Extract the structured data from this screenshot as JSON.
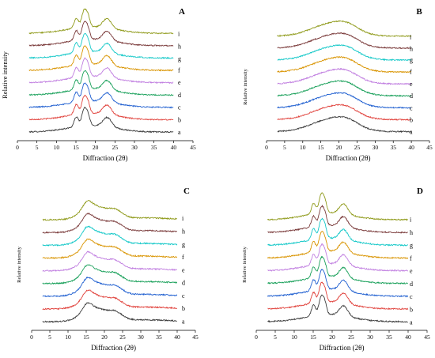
{
  "figure": {
    "background": "#ffffff",
    "panels": [
      "A",
      "B",
      "C",
      "D"
    ]
  },
  "series_colors": {
    "a": "#3c3c3c",
    "b": "#e0403a",
    "c": "#1f5fd0",
    "d": "#19a05a",
    "e": "#c07ee0",
    "f": "#d99400",
    "g": "#14c8c8",
    "h": "#7a3a3a",
    "i": "#8f9a1a"
  },
  "chart_data": [
    {
      "panel": "A",
      "type": "line",
      "title": "A",
      "xlabel": "Diffraction (2θ)",
      "ylabel": "Relative intensity",
      "xlim": [
        0,
        45
      ],
      "xticks": [
        0,
        5,
        10,
        15,
        20,
        25,
        30,
        35,
        40,
        45
      ],
      "x_range": [
        3,
        40
      ],
      "grid": false,
      "legend": "series labels at right end of each curve",
      "series": [
        {
          "name": "a",
          "color": "#3c3c3c",
          "offset": 0
        },
        {
          "name": "b",
          "color": "#e0403a",
          "offset": 1
        },
        {
          "name": "c",
          "color": "#1f5fd0",
          "offset": 2
        },
        {
          "name": "d",
          "color": "#19a05a",
          "offset": 3
        },
        {
          "name": "e",
          "color": "#c07ee0",
          "offset": 4
        },
        {
          "name": "f",
          "color": "#d99400",
          "offset": 5
        },
        {
          "name": "g",
          "color": "#14c8c8",
          "offset": 6
        },
        {
          "name": "h",
          "color": "#7a3a3a",
          "offset": 7
        },
        {
          "name": "i",
          "color": "#8f9a1a",
          "offset": 8
        }
      ],
      "peaks_2theta": [
        15.0,
        17.0,
        18.0,
        23.0
      ]
    },
    {
      "panel": "B",
      "type": "line",
      "title": "B",
      "xlabel": "Diffraction (2θ)",
      "ylabel": "Relative intensity",
      "xlim": [
        0,
        45
      ],
      "xticks": [
        0,
        5,
        10,
        15,
        20,
        25,
        30,
        35,
        40,
        45
      ],
      "x_range": [
        3,
        40
      ],
      "grid": false,
      "legend": "series labels at right end of each curve",
      "series": [
        {
          "name": "a",
          "color": "#3c3c3c",
          "offset": 0
        },
        {
          "name": "b",
          "color": "#e0403a",
          "offset": 1
        },
        {
          "name": "c",
          "color": "#1f5fd0",
          "offset": 2
        },
        {
          "name": "d",
          "color": "#19a05a",
          "offset": 3
        },
        {
          "name": "e",
          "color": "#c07ee0",
          "offset": 4
        },
        {
          "name": "f",
          "color": "#d99400",
          "offset": 5
        },
        {
          "name": "g",
          "color": "#14c8c8",
          "offset": 6
        },
        {
          "name": "h",
          "color": "#7a3a3a",
          "offset": 7
        },
        {
          "name": "i",
          "color": "#8f9a1a",
          "offset": 8
        }
      ],
      "peaks_2theta": [
        17.5,
        22.5
      ]
    },
    {
      "panel": "C",
      "type": "line",
      "title": "C",
      "xlabel": "Diffraction (2θ)",
      "ylabel": "Relative intensity",
      "xlim": [
        0,
        45
      ],
      "xticks": [
        0,
        5,
        10,
        15,
        20,
        25,
        30,
        35,
        40,
        45
      ],
      "x_range": [
        3,
        40
      ],
      "grid": false,
      "legend": "series labels at right end of each curve",
      "series": [
        {
          "name": "a",
          "color": "#3c3c3c",
          "offset": 0
        },
        {
          "name": "b",
          "color": "#e0403a",
          "offset": 1
        },
        {
          "name": "c",
          "color": "#1f5fd0",
          "offset": 2
        },
        {
          "name": "d",
          "color": "#19a05a",
          "offset": 3
        },
        {
          "name": "e",
          "color": "#c07ee0",
          "offset": 4
        },
        {
          "name": "f",
          "color": "#d99400",
          "offset": 5
        },
        {
          "name": "g",
          "color": "#14c8c8",
          "offset": 6
        },
        {
          "name": "h",
          "color": "#7a3a3a",
          "offset": 7
        },
        {
          "name": "i",
          "color": "#8f9a1a",
          "offset": 8
        }
      ],
      "peaks_2theta": [
        15.0,
        17.0,
        18.0,
        23.0
      ]
    },
    {
      "panel": "D",
      "type": "line",
      "title": "D",
      "xlabel": "Diffraction (2θ)",
      "ylabel": "Relative intensity",
      "xlim": [
        0,
        45
      ],
      "xticks": [
        0,
        5,
        10,
        15,
        20,
        25,
        30,
        35,
        40,
        45
      ],
      "x_range": [
        3,
        40
      ],
      "grid": false,
      "legend": "series labels at right end of each curve",
      "series": [
        {
          "name": "a",
          "color": "#3c3c3c",
          "offset": 0
        },
        {
          "name": "b",
          "color": "#e0403a",
          "offset": 1
        },
        {
          "name": "c",
          "color": "#1f5fd0",
          "offset": 2
        },
        {
          "name": "d",
          "color": "#19a05a",
          "offset": 3
        },
        {
          "name": "e",
          "color": "#c07ee0",
          "offset": 4
        },
        {
          "name": "f",
          "color": "#d99400",
          "offset": 5
        },
        {
          "name": "g",
          "color": "#14c8c8",
          "offset": 6
        },
        {
          "name": "h",
          "color": "#7a3a3a",
          "offset": 7
        },
        {
          "name": "i",
          "color": "#8f9a1a",
          "offset": 8
        }
      ],
      "peaks_2theta": [
        15.0,
        17.0,
        18.0,
        23.0
      ]
    }
  ]
}
